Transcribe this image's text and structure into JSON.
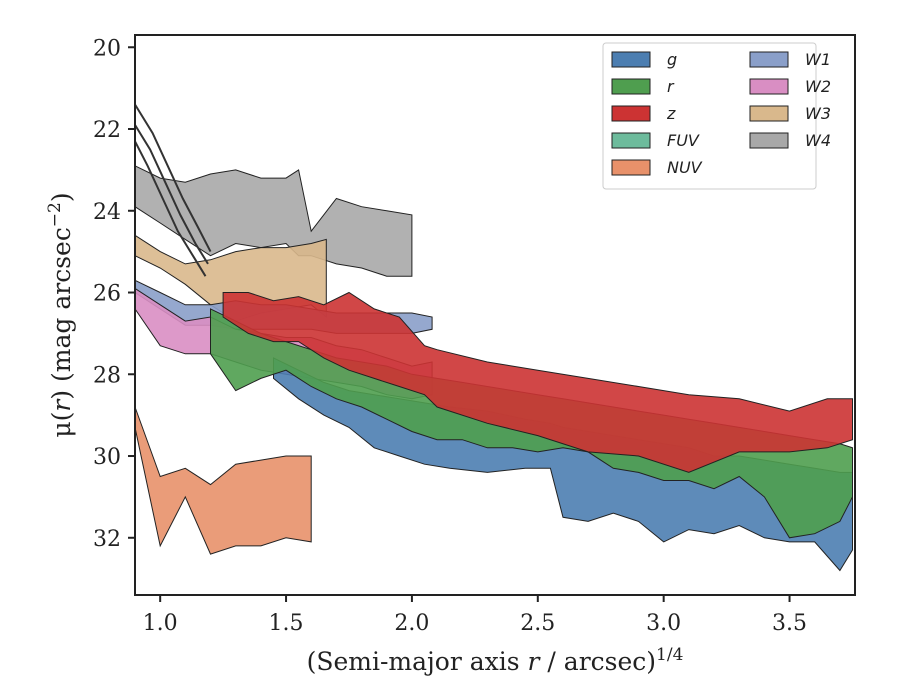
{
  "chart_data": {
    "type": "area",
    "xlabel_prefix": "(Semi-major axis ",
    "xlabel_var": "r",
    "xlabel_suffix": " / arcsec)",
    "xlabel_exp": "1/4",
    "ylabel_prefix": "μ(",
    "ylabel_var": "r",
    "ylabel_suffix": ") (mag arcsec",
    "ylabel_exp": "−2",
    "ylabel_close": ")",
    "xlim": [
      0.9,
      3.76
    ],
    "ylim": [
      33.4,
      19.7
    ],
    "y_inverted": true,
    "xticks": [
      "1.0",
      "1.5",
      "2.0",
      "2.5",
      "3.0",
      "3.5"
    ],
    "xtick_values": [
      1.0,
      1.5,
      2.0,
      2.5,
      3.0,
      3.5
    ],
    "yticks": [
      "20",
      "22",
      "24",
      "26",
      "28",
      "30",
      "32"
    ],
    "ytick_values": [
      20,
      22,
      24,
      26,
      28,
      30,
      32
    ],
    "grid": false,
    "legend_position": "top-right",
    "legend_columns": 2,
    "dark_lines": [
      {
        "x": [
          0.9,
          0.97,
          1.03,
          1.09,
          1.15,
          1.2
        ],
        "y": [
          21.4,
          22.1,
          22.9,
          23.7,
          24.4,
          25.0
        ]
      },
      {
        "x": [
          0.9,
          0.96,
          1.02,
          1.08,
          1.14,
          1.19
        ],
        "y": [
          21.9,
          22.5,
          23.3,
          24.1,
          24.8,
          25.3
        ]
      },
      {
        "x": [
          0.9,
          0.95,
          1.01,
          1.07,
          1.13,
          1.18
        ],
        "y": [
          22.3,
          22.9,
          23.7,
          24.5,
          25.1,
          25.6
        ]
      }
    ],
    "series": [
      {
        "name": "g",
        "color": "#4c7eb1",
        "x": [
          1.45,
          1.55,
          1.65,
          1.75,
          1.85,
          1.95,
          2.05,
          2.15,
          2.3,
          2.45,
          2.55,
          2.6,
          2.7,
          2.8,
          2.9,
          3.0,
          3.1,
          3.2,
          3.3,
          3.4,
          3.5,
          3.6,
          3.7,
          3.75
        ],
        "top": [
          27.6,
          27.9,
          28.2,
          28.4,
          28.5,
          28.6,
          28.7,
          28.8,
          28.9,
          29.1,
          29.2,
          29.3,
          29.4,
          29.5,
          29.6,
          29.7,
          29.8,
          30.0,
          30.0,
          30.1,
          30.2,
          30.3,
          30.4,
          30.4
        ],
        "bottom": [
          28.1,
          28.6,
          29.0,
          29.3,
          29.8,
          30.0,
          30.2,
          30.3,
          30.4,
          30.3,
          30.3,
          31.5,
          31.6,
          31.4,
          31.6,
          32.1,
          31.8,
          31.9,
          31.7,
          32.0,
          32.1,
          32.1,
          32.8,
          32.3
        ]
      },
      {
        "name": "r",
        "color": "#4f9e4f",
        "x": [
          1.2,
          1.3,
          1.4,
          1.5,
          1.6,
          1.7,
          1.8,
          1.9,
          2.0,
          2.1,
          2.2,
          2.3,
          2.4,
          2.5,
          2.6,
          2.7,
          2.8,
          2.9,
          3.0,
          3.1,
          3.2,
          3.3,
          3.4,
          3.5,
          3.6,
          3.7,
          3.75
        ],
        "top": [
          26.4,
          26.7,
          27.0,
          27.2,
          27.4,
          27.6,
          27.7,
          27.8,
          28.0,
          28.1,
          28.2,
          28.3,
          28.4,
          28.5,
          28.6,
          28.7,
          28.8,
          28.9,
          29.0,
          29.1,
          29.2,
          29.3,
          29.4,
          29.5,
          29.6,
          29.7,
          29.8
        ],
        "bottom": [
          27.5,
          28.4,
          28.1,
          27.9,
          28.3,
          28.6,
          28.8,
          29.1,
          29.4,
          29.6,
          29.6,
          29.8,
          29.8,
          29.9,
          29.8,
          29.9,
          30.3,
          30.4,
          30.6,
          30.6,
          30.8,
          30.5,
          31.0,
          32.0,
          31.9,
          31.6,
          31.0
        ]
      },
      {
        "name": "z",
        "color": "#cc3333",
        "x": [
          1.25,
          1.35,
          1.45,
          1.55,
          1.65,
          1.75,
          1.85,
          1.95,
          2.05,
          2.1,
          2.3,
          2.5,
          2.7,
          2.9,
          3.1,
          3.3,
          3.5,
          3.65,
          3.75
        ],
        "top": [
          26.0,
          26.0,
          26.2,
          26.1,
          26.3,
          26.0,
          26.4,
          26.6,
          27.3,
          27.4,
          27.7,
          27.9,
          28.1,
          28.3,
          28.5,
          28.6,
          28.9,
          28.6,
          28.6
        ],
        "bottom": [
          26.6,
          27.0,
          27.2,
          27.2,
          27.6,
          27.9,
          28.1,
          28.3,
          28.5,
          28.8,
          29.2,
          29.5,
          29.9,
          30.0,
          30.4,
          29.9,
          29.9,
          29.8,
          29.6
        ]
      },
      {
        "name": "FUV",
        "color": "#6dbb9c",
        "x": [],
        "top": [],
        "bottom": []
      },
      {
        "name": "NUV",
        "color": "#e8916a",
        "x": [
          0.9,
          1.0,
          1.1,
          1.2,
          1.3,
          1.4,
          1.5,
          1.6
        ],
        "top": [
          28.8,
          30.5,
          30.3,
          30.7,
          30.2,
          30.1,
          30.0,
          30.0
        ],
        "bottom": [
          29.3,
          32.2,
          31.0,
          32.4,
          32.2,
          32.2,
          32.0,
          32.1
        ]
      },
      {
        "name": "W1",
        "color": "#8a9fc9",
        "x": [
          0.9,
          1.0,
          1.1,
          1.2,
          1.3,
          1.4,
          1.5,
          1.6,
          1.7,
          1.8,
          1.9,
          2.0,
          2.08
        ],
        "top": [
          25.7,
          26.0,
          26.3,
          26.3,
          26.2,
          26.3,
          26.3,
          26.4,
          26.5,
          26.5,
          26.5,
          26.5,
          26.6
        ],
        "bottom": [
          26.0,
          26.4,
          26.8,
          26.8,
          26.9,
          26.9,
          26.9,
          26.9,
          27.0,
          27.0,
          27.0,
          27.0,
          26.9
        ]
      },
      {
        "name": "W2",
        "color": "#d98ec3",
        "x": [
          0.9,
          1.0,
          1.1,
          1.2,
          1.3,
          1.4,
          1.5,
          1.6,
          1.7,
          1.8,
          1.9,
          2.0,
          2.08
        ],
        "top": [
          25.9,
          26.3,
          26.7,
          26.6,
          26.9,
          27.0,
          27.1,
          27.1,
          27.3,
          27.4,
          27.6,
          27.8,
          27.7
        ],
        "bottom": [
          26.4,
          27.3,
          27.5,
          27.5,
          27.7,
          27.9,
          28.0,
          28.1,
          28.2,
          28.3,
          28.5,
          28.6,
          28.5
        ]
      },
      {
        "name": "W3",
        "color": "#d9b88c",
        "x": [
          0.9,
          1.0,
          1.1,
          1.2,
          1.3,
          1.4,
          1.5,
          1.6,
          1.66
        ],
        "top": [
          24.6,
          25.0,
          25.3,
          25.2,
          25.0,
          24.9,
          24.9,
          24.8,
          24.7
        ],
        "bottom": [
          25.1,
          25.4,
          25.8,
          26.3,
          26.7,
          26.5,
          26.4,
          26.3,
          26.6
        ]
      },
      {
        "name": "W4",
        "color": "#a8a8a8",
        "x": [
          0.9,
          1.0,
          1.1,
          1.2,
          1.3,
          1.4,
          1.5,
          1.55,
          1.6,
          1.7,
          1.8,
          1.9,
          2.0
        ],
        "top": [
          22.9,
          23.2,
          23.3,
          23.1,
          23.0,
          23.2,
          23.2,
          23.0,
          24.5,
          23.7,
          23.9,
          24.0,
          24.1
        ],
        "bottom": [
          23.9,
          24.3,
          24.7,
          25.1,
          24.8,
          24.9,
          24.8,
          25.1,
          25.1,
          25.3,
          25.4,
          25.6,
          25.6
        ]
      }
    ]
  }
}
